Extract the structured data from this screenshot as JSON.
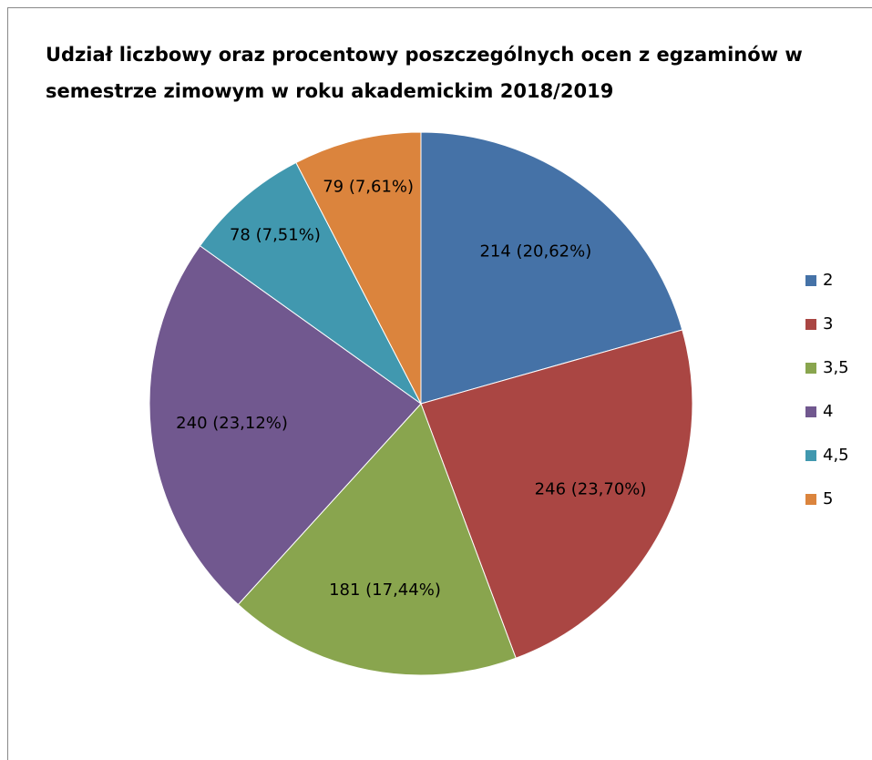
{
  "chart_data": {
    "type": "pie",
    "title": "Udział liczbowy oraz procentowy poszczególnych ocen z egzaminów w semestrze zimowym w roku akademickim 2018/2019",
    "categories": [
      "2",
      "3",
      "3,5",
      "4",
      "4,5",
      "5"
    ],
    "values": [
      214,
      246,
      181,
      240,
      78,
      79
    ],
    "value_labels": [
      "214 (20,62%)",
      "246 (23,70%)",
      "181 (17,44%)",
      "240 (23,12%)",
      "78 (7,51%)",
      "79 (7,61%)"
    ],
    "colors": [
      "#4572a7",
      "#aa4643",
      "#89a54e",
      "#71588f",
      "#4198af",
      "#db843d"
    ],
    "legend": "right"
  }
}
